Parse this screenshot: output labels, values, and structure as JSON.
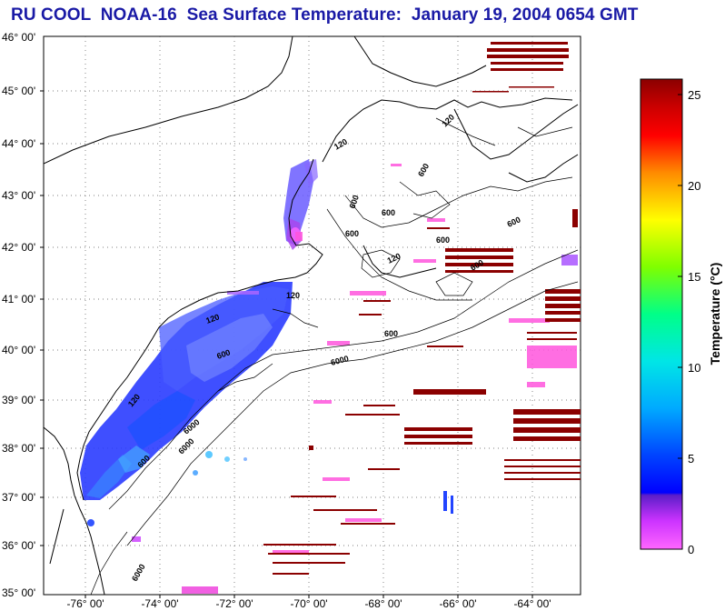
{
  "title": "RU COOL  NOAA-16  Sea Surface Temperature:  January 19, 2004 0654 GMT",
  "map": {
    "lat_labels": [
      "46° 00'",
      "45° 00'",
      "44° 00'",
      "43° 00'",
      "42° 00'",
      "41° 00'",
      "40° 00'",
      "39° 00'",
      "38° 00'",
      "37° 00'",
      "36° 00'",
      "35° 00'"
    ],
    "lon_labels": [
      "-76° 00'",
      "-74° 00'",
      "-72° 00'",
      "-70° 00'",
      "-68° 00'",
      "-66° 00'",
      "-64° 00'"
    ],
    "contour_labels": [
      "600",
      "600",
      "600",
      "600",
      "120",
      "120",
      "6000",
      "6000",
      "6000",
      "600",
      "600",
      "120",
      "120",
      "600",
      "600",
      "120",
      "600",
      "600",
      "6000",
      "120"
    ]
  },
  "colorbar": {
    "label": "Temperature (°C)",
    "ticks": [
      "25",
      "20",
      "15",
      "10",
      "5",
      "0"
    ],
    "range": [
      0,
      26
    ],
    "stops": [
      "#ff66ff",
      "#cc33ff",
      "#5a1ec8",
      "#0000ff",
      "#00aaff",
      "#00e6e6",
      "#00ff88",
      "#7fff00",
      "#ffff00",
      "#ff8c00",
      "#ff0000",
      "#cc0000",
      "#8b0000"
    ]
  }
}
